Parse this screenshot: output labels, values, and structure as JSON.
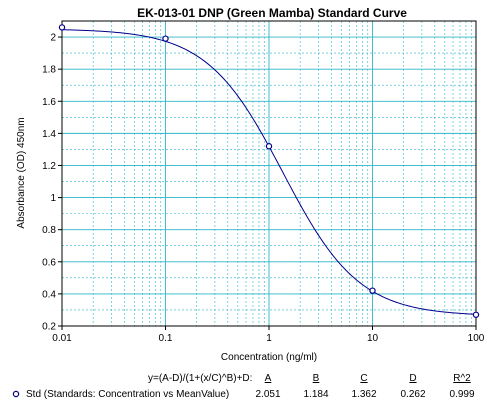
{
  "chart_data": {
    "type": "scatter",
    "title": "EK-013-01 DNP (Green Mamba) Standard Curve",
    "xlabel": "Concentration (ng/ml)",
    "ylabel": "Absorbance (OD) 450nm",
    "xscale": "log",
    "xlim": [
      0.01,
      100
    ],
    "ylim": [
      0.2,
      2.1
    ],
    "x_ticks": [
      0.01,
      0.1,
      1,
      10,
      100
    ],
    "x_tick_labels": [
      "0.01",
      "0.1",
      "1",
      "10",
      "100"
    ],
    "y_ticks": [
      0.2,
      0.4,
      0.6,
      0.8,
      1.0,
      1.2,
      1.4,
      1.6,
      1.8,
      2.0
    ],
    "y_tick_labels": [
      "0.2",
      "0.4",
      "0.6",
      "0.8",
      "1",
      "1.2",
      "1.4",
      "1.6",
      "1.8",
      "2"
    ],
    "grid": true,
    "grid_color": "#2eb6c8",
    "curve_color": "#00008b",
    "marker_color": "#00008b",
    "series": [
      {
        "name": "Std (Standards: Concentration vs MeanValue)",
        "marker": "open-circle",
        "x": [
          0.01,
          0.1,
          1,
          10,
          100
        ],
        "y": [
          2.06,
          1.99,
          1.32,
          0.42,
          0.27
        ]
      }
    ],
    "fit": {
      "equation": "y=(A-D)/(1+(x/C)^B)+D:",
      "headers": [
        "A",
        "B",
        "C",
        "D",
        "R^2"
      ],
      "values": [
        "2.051",
        "1.184",
        "1.362",
        "0.262",
        "0.999"
      ],
      "params": {
        "A": 2.051,
        "B": 1.184,
        "C": 1.362,
        "D": 0.262
      }
    }
  }
}
